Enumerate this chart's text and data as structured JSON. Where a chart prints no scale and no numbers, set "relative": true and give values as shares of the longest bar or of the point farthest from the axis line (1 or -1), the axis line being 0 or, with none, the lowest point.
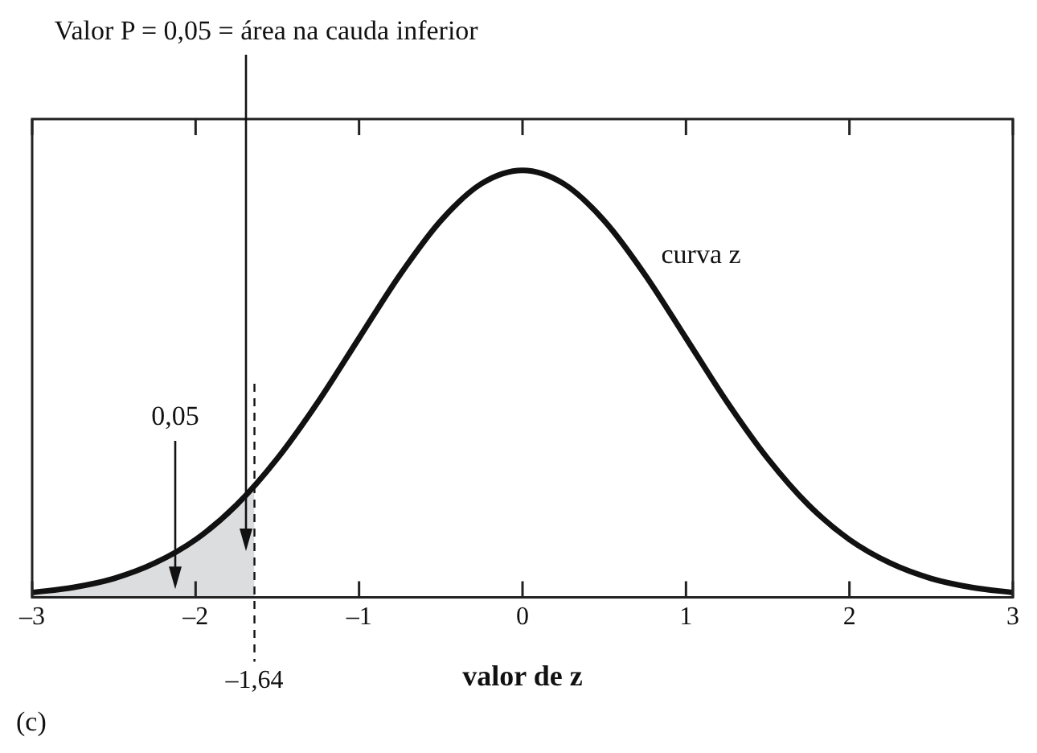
{
  "chart_data": {
    "type": "line",
    "relative": true,
    "xlabel": "valor de z",
    "xlim": [
      -3,
      3
    ],
    "xticks": [
      {
        "value": -3,
        "label": "–3"
      },
      {
        "value": -2,
        "label": "–2"
      },
      {
        "value": -1,
        "label": "–1"
      },
      0,
      1,
      2,
      3
    ],
    "tick_labels": "x",
    "grid": false,
    "legend": false,
    "marker": "none",
    "line_style": "solid",
    "series": [
      {
        "name": "curva z",
        "color": "#111111",
        "x": [
          -3,
          -2.75,
          -2.5,
          -2.25,
          -2,
          -1.75,
          -1.5,
          -1.25,
          -1,
          -0.75,
          -0.5,
          -0.25,
          0,
          0.25,
          0.5,
          0.75,
          1,
          1.25,
          1.5,
          1.75,
          2,
          2.25,
          2.5,
          2.75,
          3
        ],
        "values": [
          0.011,
          0.023,
          0.044,
          0.08,
          0.135,
          0.216,
          0.325,
          0.458,
          0.607,
          0.755,
          0.882,
          0.969,
          1,
          0.969,
          0.882,
          0.755,
          0.607,
          0.458,
          0.325,
          0.216,
          0.135,
          0.08,
          0.044,
          0.023,
          0.011
        ]
      },
      {
        "type": "area",
        "color": "#dcdddf",
        "x": [
          -3,
          -2.75,
          -2.5,
          -2.25,
          -2,
          -1.75,
          -1.64
        ],
        "values": [
          0.011,
          0.023,
          0.044,
          0.08,
          0.135,
          0.216,
          0.261
        ]
      }
    ],
    "ref_lines": [
      {
        "axis": "x",
        "value": -1.64,
        "label": "–1,64",
        "line_style": "dashed",
        "color": "#111111"
      }
    ],
    "annotations": [
      "Valor P = 0,05 = área na cauda inferior",
      "0,05",
      "(c)"
    ]
  }
}
